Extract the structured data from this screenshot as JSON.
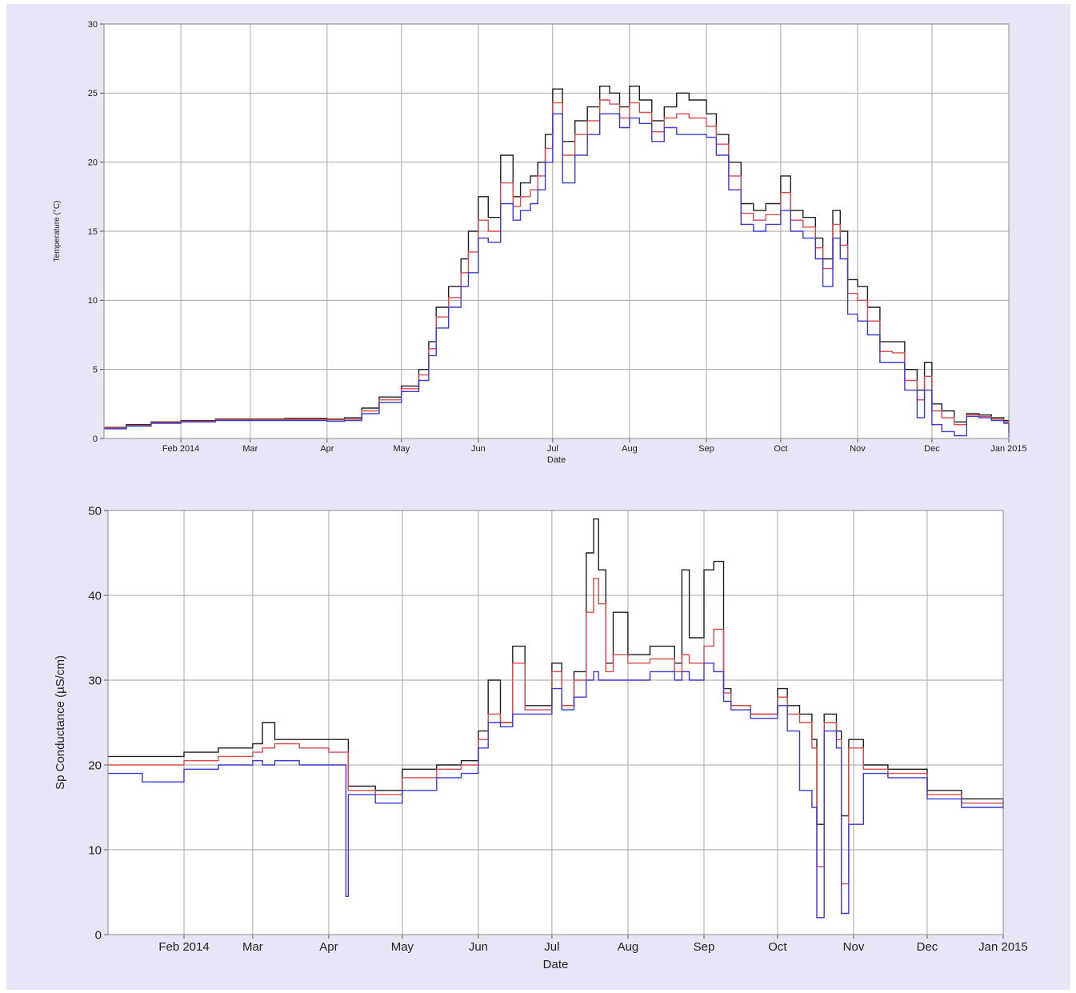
{
  "page": {
    "background_color": "#e6e6f7"
  },
  "colors": {
    "max_series": "#1e1e1e",
    "mean_series": "#d94a4a",
    "min_series": "#3a3ad6",
    "grid": "#a6a6a6",
    "plot_background": "#ffffff"
  },
  "chart_data": [
    {
      "type": "line",
      "step": true,
      "title": "",
      "xlabel": "Date",
      "ylabel": "Temperature (°C)",
      "xlim": [
        "2014-01-01",
        "2015-01-01"
      ],
      "ylim": [
        0,
        30
      ],
      "y_ticks": [
        0,
        5,
        10,
        15,
        20,
        25,
        30
      ],
      "x_tick_labels": [
        {
          "date": "2014-02-01",
          "label": "Feb 2014"
        },
        {
          "date": "2014-03-01",
          "label": "Mar"
        },
        {
          "date": "2014-04-01",
          "label": "Apr"
        },
        {
          "date": "2014-05-01",
          "label": "May"
        },
        {
          "date": "2014-06-01",
          "label": "Jun"
        },
        {
          "date": "2014-07-01",
          "label": "Jul"
        },
        {
          "date": "2014-08-01",
          "label": "Aug"
        },
        {
          "date": "2014-09-01",
          "label": "Sep"
        },
        {
          "date": "2014-10-01",
          "label": "Oct"
        },
        {
          "date": "2014-11-01",
          "label": "Nov"
        },
        {
          "date": "2014-12-01",
          "label": "Dec"
        },
        {
          "date": "2015-01-01",
          "label": "Jan 2015"
        }
      ],
      "grid": true,
      "legend": "none",
      "series": [
        {
          "key": "max",
          "color": "#1e1e1e",
          "x": [
            "2014-01-01",
            "2014-01-10",
            "2014-01-20",
            "2014-02-01",
            "2014-02-15",
            "2014-03-01",
            "2014-03-15",
            "2014-04-01",
            "2014-04-08",
            "2014-04-15",
            "2014-04-22",
            "2014-05-01",
            "2014-05-08",
            "2014-05-12",
            "2014-05-15",
            "2014-05-20",
            "2014-05-25",
            "2014-05-28",
            "2014-06-01",
            "2014-06-05",
            "2014-06-10",
            "2014-06-15",
            "2014-06-18",
            "2014-06-22",
            "2014-06-25",
            "2014-06-28",
            "2014-07-01",
            "2014-07-05",
            "2014-07-10",
            "2014-07-15",
            "2014-07-20",
            "2014-07-24",
            "2014-07-28",
            "2014-08-01",
            "2014-08-05",
            "2014-08-10",
            "2014-08-15",
            "2014-08-20",
            "2014-08-25",
            "2014-09-01",
            "2014-09-05",
            "2014-09-10",
            "2014-09-15",
            "2014-09-20",
            "2014-09-25",
            "2014-10-01",
            "2014-10-05",
            "2014-10-10",
            "2014-10-15",
            "2014-10-18",
            "2014-10-22",
            "2014-10-25",
            "2014-10-28",
            "2014-11-01",
            "2014-11-05",
            "2014-11-10",
            "2014-11-15",
            "2014-11-20",
            "2014-11-25",
            "2014-11-28",
            "2014-12-01",
            "2014-12-05",
            "2014-12-10",
            "2014-12-15",
            "2014-12-20",
            "2014-12-25",
            "2014-12-30",
            "2015-01-01"
          ],
          "y": [
            0.8,
            1.0,
            1.2,
            1.3,
            1.4,
            1.4,
            1.45,
            1.4,
            1.5,
            2.2,
            3.0,
            3.8,
            5.0,
            7.0,
            9.5,
            11.0,
            13.0,
            15.0,
            17.5,
            16.0,
            20.5,
            17.5,
            18.5,
            19.0,
            20.0,
            22.0,
            25.3,
            21.5,
            23.0,
            24.0,
            25.5,
            25.0,
            24.0,
            25.5,
            24.5,
            23.0,
            24.0,
            25.0,
            24.5,
            23.5,
            22.0,
            20.0,
            17.0,
            16.5,
            17.0,
            19.0,
            16.5,
            16.0,
            14.5,
            13.0,
            16.5,
            15.0,
            11.5,
            11.0,
            9.5,
            7.0,
            7.0,
            5.0,
            3.5,
            5.5,
            2.5,
            2.0,
            1.2,
            1.8,
            1.7,
            1.5,
            1.3,
            0.5
          ]
        },
        {
          "key": "mean",
          "color": "#d94a4a",
          "x": [
            "2014-01-01",
            "2014-01-10",
            "2014-01-20",
            "2014-02-01",
            "2014-02-15",
            "2014-03-01",
            "2014-03-15",
            "2014-04-01",
            "2014-04-08",
            "2014-04-15",
            "2014-04-22",
            "2014-05-01",
            "2014-05-08",
            "2014-05-12",
            "2014-05-15",
            "2014-05-20",
            "2014-05-25",
            "2014-05-28",
            "2014-06-01",
            "2014-06-05",
            "2014-06-10",
            "2014-06-15",
            "2014-06-18",
            "2014-06-22",
            "2014-06-25",
            "2014-06-28",
            "2014-07-01",
            "2014-07-05",
            "2014-07-10",
            "2014-07-15",
            "2014-07-20",
            "2014-07-24",
            "2014-07-28",
            "2014-08-01",
            "2014-08-05",
            "2014-08-10",
            "2014-08-15",
            "2014-08-20",
            "2014-08-25",
            "2014-09-01",
            "2014-09-05",
            "2014-09-10",
            "2014-09-15",
            "2014-09-20",
            "2014-09-25",
            "2014-10-01",
            "2014-10-05",
            "2014-10-10",
            "2014-10-15",
            "2014-10-18",
            "2014-10-22",
            "2014-10-25",
            "2014-10-28",
            "2014-11-01",
            "2014-11-05",
            "2014-11-10",
            "2014-11-15",
            "2014-11-20",
            "2014-11-25",
            "2014-11-28",
            "2014-12-01",
            "2014-12-05",
            "2014-12-10",
            "2014-12-15",
            "2014-12-20",
            "2014-12-25",
            "2014-12-30",
            "2015-01-01"
          ],
          "y": [
            0.75,
            0.95,
            1.15,
            1.25,
            1.35,
            1.35,
            1.38,
            1.35,
            1.4,
            2.0,
            2.8,
            3.6,
            4.6,
            6.5,
            8.8,
            10.2,
            12.0,
            13.5,
            15.8,
            15.0,
            18.5,
            16.8,
            17.5,
            18.0,
            19.0,
            21.0,
            24.3,
            20.5,
            22.0,
            23.0,
            24.5,
            24.2,
            23.2,
            24.3,
            23.6,
            22.2,
            23.2,
            23.5,
            23.2,
            22.6,
            21.3,
            19.0,
            16.3,
            15.8,
            16.2,
            17.8,
            15.8,
            15.3,
            13.8,
            12.3,
            15.5,
            14.0,
            10.5,
            10.0,
            8.5,
            6.3,
            6.2,
            4.2,
            2.8,
            4.5,
            2.0,
            1.5,
            1.0,
            1.7,
            1.6,
            1.4,
            1.2,
            0.4
          ]
        },
        {
          "key": "min",
          "color": "#3a3ad6",
          "x": [
            "2014-01-01",
            "2014-01-10",
            "2014-01-20",
            "2014-02-01",
            "2014-02-15",
            "2014-03-01",
            "2014-03-15",
            "2014-04-01",
            "2014-04-08",
            "2014-04-15",
            "2014-04-22",
            "2014-05-01",
            "2014-05-08",
            "2014-05-12",
            "2014-05-15",
            "2014-05-20",
            "2014-05-25",
            "2014-05-28",
            "2014-06-01",
            "2014-06-05",
            "2014-06-10",
            "2014-06-15",
            "2014-06-18",
            "2014-06-22",
            "2014-06-25",
            "2014-06-28",
            "2014-07-01",
            "2014-07-05",
            "2014-07-10",
            "2014-07-15",
            "2014-07-20",
            "2014-07-24",
            "2014-07-28",
            "2014-08-01",
            "2014-08-05",
            "2014-08-10",
            "2014-08-15",
            "2014-08-20",
            "2014-08-25",
            "2014-09-01",
            "2014-09-05",
            "2014-09-10",
            "2014-09-15",
            "2014-09-20",
            "2014-09-25",
            "2014-10-01",
            "2014-10-05",
            "2014-10-10",
            "2014-10-15",
            "2014-10-18",
            "2014-10-22",
            "2014-10-25",
            "2014-10-28",
            "2014-11-01",
            "2014-11-05",
            "2014-11-10",
            "2014-11-15",
            "2014-11-20",
            "2014-11-25",
            "2014-11-28",
            "2014-12-01",
            "2014-12-05",
            "2014-12-10",
            "2014-12-15",
            "2014-12-20",
            "2014-12-25",
            "2014-12-30",
            "2015-01-01"
          ],
          "y": [
            0.7,
            0.9,
            1.1,
            1.2,
            1.3,
            1.3,
            1.3,
            1.25,
            1.3,
            1.8,
            2.6,
            3.4,
            4.2,
            6.0,
            8.0,
            9.5,
            11.0,
            12.0,
            14.5,
            14.2,
            17.0,
            15.8,
            16.5,
            17.0,
            18.0,
            20.0,
            23.5,
            18.5,
            20.5,
            22.0,
            23.5,
            23.5,
            22.5,
            23.2,
            22.8,
            21.5,
            22.5,
            22.0,
            22.0,
            21.8,
            20.5,
            18.0,
            15.5,
            15.0,
            15.5,
            16.5,
            15.0,
            14.5,
            13.0,
            11.0,
            14.5,
            13.0,
            9.0,
            8.5,
            7.5,
            5.5,
            5.5,
            3.5,
            1.5,
            3.5,
            1.0,
            0.5,
            0.2,
            1.6,
            1.5,
            1.3,
            1.1,
            0.1
          ]
        }
      ]
    },
    {
      "type": "line",
      "step": true,
      "title": "",
      "xlabel": "Date",
      "ylabel": "Sp Conductance (µS/cm)",
      "xlim": [
        "2014-01-01",
        "2015-01-01"
      ],
      "ylim": [
        0,
        50
      ],
      "y_ticks": [
        0,
        10,
        20,
        30,
        40,
        50
      ],
      "x_tick_labels": [
        {
          "date": "2014-02-01",
          "label": "Feb 2014"
        },
        {
          "date": "2014-03-01",
          "label": "Mar"
        },
        {
          "date": "2014-04-01",
          "label": "Apr"
        },
        {
          "date": "2014-05-01",
          "label": "May"
        },
        {
          "date": "2014-06-01",
          "label": "Jun"
        },
        {
          "date": "2014-07-01",
          "label": "Jul"
        },
        {
          "date": "2014-08-01",
          "label": "Aug"
        },
        {
          "date": "2014-09-01",
          "label": "Sep"
        },
        {
          "date": "2014-10-01",
          "label": "Oct"
        },
        {
          "date": "2014-11-01",
          "label": "Nov"
        },
        {
          "date": "2014-12-01",
          "label": "Dec"
        },
        {
          "date": "2015-01-01",
          "label": "Jan 2015"
        }
      ],
      "grid": true,
      "legend": "none",
      "series": [
        {
          "key": "max",
          "color": "#1e1e1e",
          "x": [
            "2014-01-01",
            "2014-01-15",
            "2014-02-01",
            "2014-02-15",
            "2014-03-01",
            "2014-03-05",
            "2014-03-10",
            "2014-03-20",
            "2014-04-01",
            "2014-04-08",
            "2014-04-09",
            "2014-04-20",
            "2014-05-01",
            "2014-05-15",
            "2014-05-25",
            "2014-06-01",
            "2014-06-05",
            "2014-06-10",
            "2014-06-15",
            "2014-06-20",
            "2014-06-25",
            "2014-07-01",
            "2014-07-05",
            "2014-07-10",
            "2014-07-15",
            "2014-07-18",
            "2014-07-20",
            "2014-07-23",
            "2014-07-26",
            "2014-08-01",
            "2014-08-10",
            "2014-08-20",
            "2014-08-23",
            "2014-08-26",
            "2014-09-01",
            "2014-09-05",
            "2014-09-09",
            "2014-09-12",
            "2014-09-20",
            "2014-10-01",
            "2014-10-05",
            "2014-10-10",
            "2014-10-15",
            "2014-10-17",
            "2014-10-20",
            "2014-10-25",
            "2014-10-27",
            "2014-10-30",
            "2014-11-05",
            "2014-11-15",
            "2014-12-01",
            "2014-12-15",
            "2015-01-01"
          ],
          "y": [
            21,
            21,
            21.5,
            22,
            22.5,
            25,
            23,
            23,
            23,
            23,
            17.5,
            17,
            19.5,
            20,
            20.5,
            24,
            30,
            25,
            34,
            27,
            27,
            32,
            27,
            31,
            45,
            49,
            43,
            32,
            38,
            33,
            34,
            32,
            43,
            35,
            43,
            44,
            29,
            27,
            26,
            29,
            27,
            26,
            23,
            13,
            26,
            24,
            14,
            23,
            20,
            19.5,
            17,
            16,
            15
          ]
        },
        {
          "key": "mean",
          "color": "#d94a4a",
          "x": [
            "2014-01-01",
            "2014-01-15",
            "2014-02-01",
            "2014-02-15",
            "2014-03-01",
            "2014-03-05",
            "2014-03-10",
            "2014-03-20",
            "2014-04-01",
            "2014-04-08",
            "2014-04-09",
            "2014-04-20",
            "2014-05-01",
            "2014-05-15",
            "2014-05-25",
            "2014-06-01",
            "2014-06-05",
            "2014-06-10",
            "2014-06-15",
            "2014-06-20",
            "2014-06-25",
            "2014-07-01",
            "2014-07-05",
            "2014-07-10",
            "2014-07-15",
            "2014-07-18",
            "2014-07-20",
            "2014-07-23",
            "2014-07-26",
            "2014-08-01",
            "2014-08-10",
            "2014-08-20",
            "2014-08-23",
            "2014-08-26",
            "2014-09-01",
            "2014-09-05",
            "2014-09-09",
            "2014-09-12",
            "2014-09-20",
            "2014-10-01",
            "2014-10-05",
            "2014-10-10",
            "2014-10-15",
            "2014-10-17",
            "2014-10-20",
            "2014-10-25",
            "2014-10-27",
            "2014-10-30",
            "2014-11-05",
            "2014-11-15",
            "2014-12-01",
            "2014-12-15",
            "2015-01-01"
          ],
          "y": [
            20,
            20,
            20.5,
            21,
            21.5,
            22,
            22.5,
            22,
            21.5,
            21.5,
            17,
            16.5,
            18.5,
            19.5,
            20,
            23,
            26,
            25,
            32,
            26.5,
            26.5,
            31,
            27,
            30,
            38,
            42,
            39,
            31,
            33,
            32,
            32.5,
            31,
            33,
            32,
            34,
            36,
            28.5,
            27,
            26,
            28,
            26,
            25,
            22,
            8,
            25,
            23,
            6,
            22,
            19.5,
            19,
            16.5,
            15.5,
            15
          ]
        },
        {
          "key": "min",
          "color": "#3a3ad6",
          "x": [
            "2014-01-01",
            "2014-01-15",
            "2014-02-01",
            "2014-02-15",
            "2014-03-01",
            "2014-03-05",
            "2014-03-10",
            "2014-03-20",
            "2014-04-01",
            "2014-04-08",
            "2014-04-09",
            "2014-04-20",
            "2014-05-01",
            "2014-05-15",
            "2014-05-25",
            "2014-06-01",
            "2014-06-05",
            "2014-06-10",
            "2014-06-15",
            "2014-06-20",
            "2014-06-25",
            "2014-07-01",
            "2014-07-05",
            "2014-07-10",
            "2014-07-15",
            "2014-07-18",
            "2014-07-20",
            "2014-07-23",
            "2014-07-26",
            "2014-08-01",
            "2014-08-10",
            "2014-08-20",
            "2014-08-23",
            "2014-08-26",
            "2014-09-01",
            "2014-09-05",
            "2014-09-09",
            "2014-09-12",
            "2014-09-20",
            "2014-10-01",
            "2014-10-05",
            "2014-10-10",
            "2014-10-15",
            "2014-10-17",
            "2014-10-20",
            "2014-10-25",
            "2014-10-27",
            "2014-10-30",
            "2014-11-05",
            "2014-11-15",
            "2014-12-01",
            "2014-12-15",
            "2015-01-01"
          ],
          "y": [
            19,
            18,
            19.5,
            20,
            20.5,
            20,
            20.5,
            20,
            20,
            4.5,
            16.5,
            15.5,
            17,
            18.5,
            19,
            22,
            25,
            24.5,
            26,
            26,
            26,
            29,
            26.5,
            28,
            30,
            31,
            30,
            30,
            30,
            30,
            31,
            30,
            31,
            30,
            32,
            31,
            27.5,
            26.5,
            25.5,
            27,
            24,
            17,
            15,
            2,
            24,
            22,
            2.5,
            13,
            19,
            18.5,
            16,
            15,
            14.8
          ]
        }
      ]
    }
  ]
}
